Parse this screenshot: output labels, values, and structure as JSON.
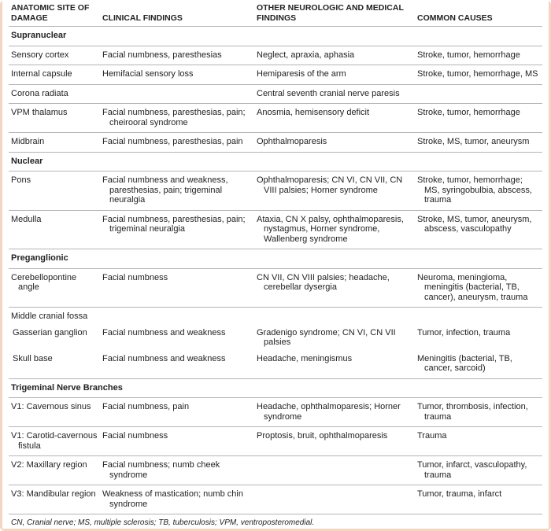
{
  "table": {
    "headers": [
      "ANATOMIC SITE OF DAMAGE",
      "CLINICAL FINDINGS",
      "OTHER NEUROLOGIC AND MEDICAL FINDINGS",
      "COMMON CAUSES"
    ],
    "sections": [
      {
        "title": "Supranuclear",
        "rows": [
          {
            "site": "Sensory cortex",
            "clinical": "Facial numbness, paresthesias",
            "other": "Neglect, apraxia, aphasia",
            "causes": "Stroke, tumor, hemorrhage"
          },
          {
            "site": "Internal capsule",
            "clinical": "Hemifacial sensory loss",
            "other": "Hemiparesis of the arm",
            "causes": "Stroke, tumor, hemorrhage, MS"
          },
          {
            "site": "Corona radiata",
            "other": "Central seventh cranial nerve paresis"
          },
          {
            "site": "VPM thalamus",
            "clinical": "Facial numbness, paresthesias, pain; cheirooral syndrome",
            "other": "Anosmia, hemisensory deficit",
            "causes": "Stroke, tumor, hemorrhage"
          },
          {
            "site": "Midbrain",
            "clinical": "Facial numbness, paresthesias, pain",
            "other": "Ophthalmoparesis",
            "causes": "Stroke, MS, tumor, aneurysm"
          }
        ]
      },
      {
        "title": "Nuclear",
        "rows": [
          {
            "site": "Pons",
            "clinical": "Facial numbness and weakness, paresthesias, pain; trigeminal neuralgia",
            "other": "Ophthalmoparesis; CN VI, CN VII, CN VIII palsies; Horner syndrome",
            "causes": "Stroke, tumor, hemorrhage; MS, syringobulbia, abscess, trauma"
          },
          {
            "site": "Medulla",
            "clinical": "Facial numbness, paresthesias, pain; trigeminal neuralgia",
            "other": "Ataxia, CN X palsy, ophthalmoparesis, nystagmus, Horner syndrome, Wallenberg syndrome",
            "causes": "Stroke, MS, tumor, aneurysm, abscess, vasculopathy"
          }
        ]
      },
      {
        "title": "Preganglionic",
        "rows": [
          {
            "site": "Cerebellopontine angle",
            "clinical": "Facial numbness",
            "other": "CN VII, CN VIII palsies; headache, cerebellar dysergia",
            "causes": "Neuroma, meningioma, meningitis (bacterial, TB, cancer), aneurysm, trauma"
          },
          {
            "site": "Middle cranial fossa",
            "subrows": [
              {
                "site": "Gasserian ganglion",
                "clinical": "Facial numbness and weakness",
                "other": "Gradenigo syndrome; CN VI, CN VII palsies",
                "causes": "Tumor, infection, trauma"
              },
              {
                "site": "Skull base",
                "clinical": "Facial numbness and weakness",
                "other": "Headache, meningismus",
                "causes": "Meningitis (bacterial, TB, cancer, sarcoid)"
              }
            ]
          }
        ]
      },
      {
        "title": "Trigeminal Nerve Branches",
        "rows": [
          {
            "site": "V1: Cavernous sinus",
            "clinical": "Facial numbness, pain",
            "other": "Headache, ophthalmoparesis; Horner syndrome",
            "causes": "Tumor, thrombosis, infection, trauma"
          },
          {
            "site": "V1: Carotid-cavernous fistula",
            "clinical": "Facial numbness",
            "other": "Proptosis, bruit, ophthalmoparesis",
            "causes": "Trauma"
          },
          {
            "site": "V2: Maxillary region",
            "clinical": "Facial numbness; numb cheek syndrome",
            "causes": "Tumor, infarct, vasculopathy, trauma"
          },
          {
            "site": "V3: Mandibular region",
            "clinical": "Weakness of mastication; numb chin syndrome",
            "causes": "Tumor, trauma, infarct"
          }
        ]
      }
    ]
  },
  "footnote": "CN, Cranial nerve; MS, multiple sclerosis; TB, tuberculosis; VPM, ventroposteromedial."
}
